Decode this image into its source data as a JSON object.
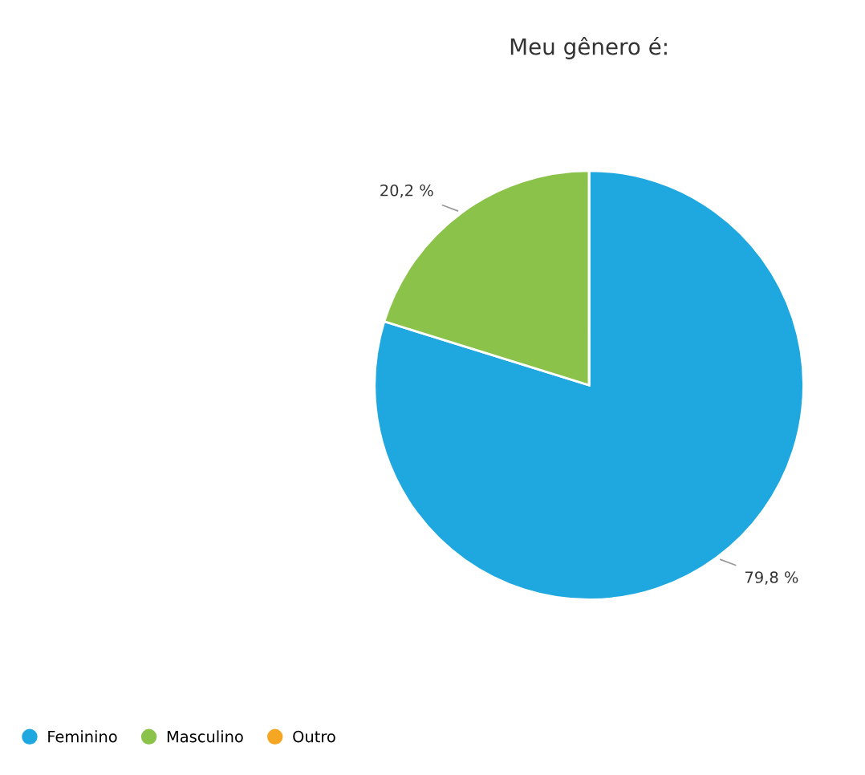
{
  "chart_data": {
    "type": "pie",
    "title": "Meu gênero é:",
    "categories": [
      "Feminino",
      "Masculino",
      "Outro"
    ],
    "values": [
      79.8,
      20.2,
      0
    ],
    "colors": [
      "#1fa8e0",
      "#8bc34a",
      "#f5a623"
    ],
    "value_labels": [
      "79,8 %",
      "20,2 %",
      null
    ],
    "legend": "bottom left"
  }
}
